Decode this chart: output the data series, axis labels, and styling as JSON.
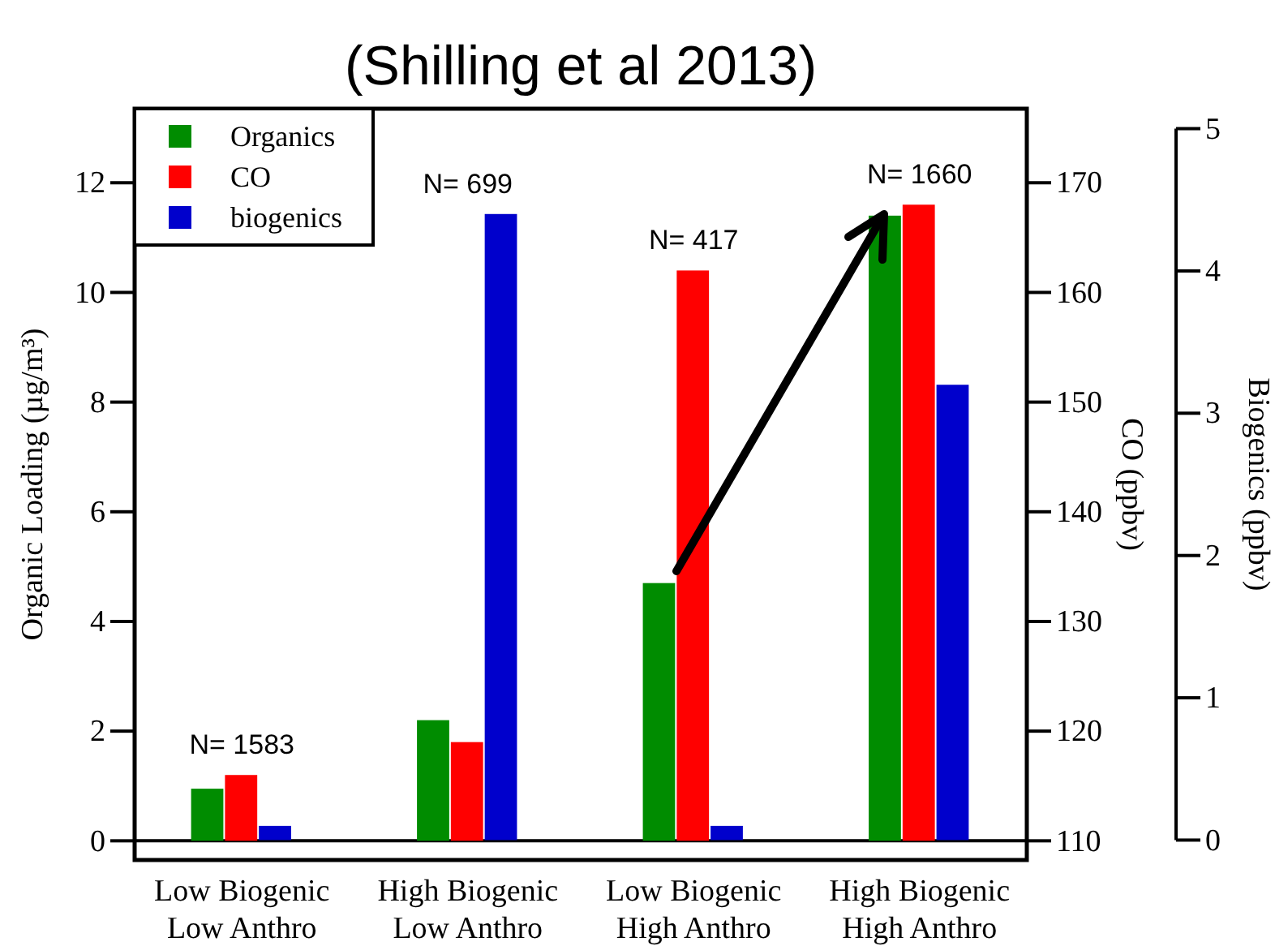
{
  "chart_data": {
    "type": "bar",
    "title": "(Shilling et al 2013)",
    "categories": [
      "Low Biogenic\nLow Anthro",
      "High Biogenic\nLow Anthro",
      "Low Biogenic\nHigh Anthro",
      "High Biogenic\nHigh Anthro"
    ],
    "series": [
      {
        "name": "Organics",
        "color": "#008c00",
        "values": [
          0.95,
          2.2,
          4.7,
          11.4
        ]
      },
      {
        "name": "CO",
        "color": "#ff0000",
        "axis": "y2",
        "base": [
          110,
          110,
          110,
          110
        ],
        "values": [
          6,
          9,
          52,
          58
        ]
      },
      {
        "name": "biogenics",
        "color": "#0000cc",
        "axis": "y3",
        "values": [
          0.1,
          4.4,
          0.1,
          3.2
        ]
      }
    ],
    "ylabel": "Organic Loading (µg/m³)",
    "y2label": "CO (ppbv)",
    "y3label": "Biogenics (ppbv)",
    "ylim": [
      -0.35,
      13.35
    ],
    "yticks": [
      0,
      2,
      4,
      6,
      8,
      10,
      12
    ],
    "y2lim": [
      108.25,
      176.75
    ],
    "y2ticks": [
      110,
      120,
      130,
      140,
      150,
      160,
      170
    ],
    "y3lim": [
      -0.14,
      5.14
    ],
    "y3ticks": [
      0,
      1,
      2,
      3,
      4,
      5
    ],
    "annotations": [
      "N= 1583",
      "N= 699",
      "N= 417",
      "N= 1660"
    ],
    "legend": "top left"
  }
}
